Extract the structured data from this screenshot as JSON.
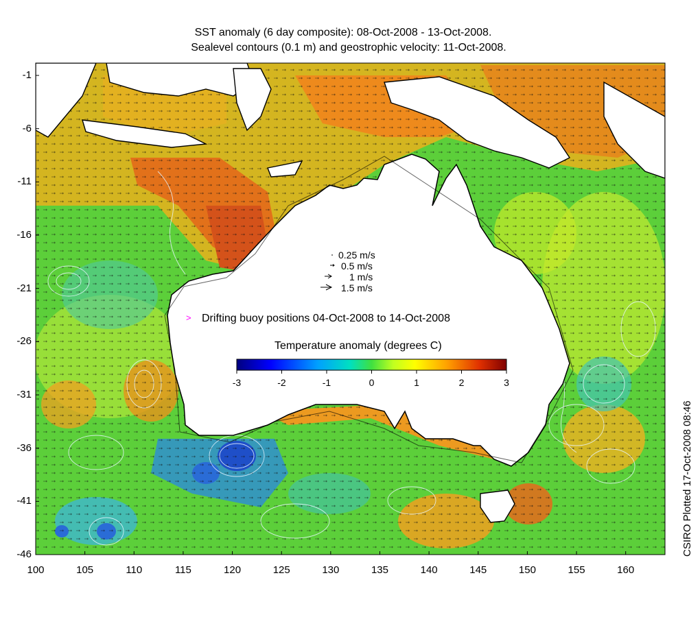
{
  "header": {
    "title_line1": "SST anomaly (6 day composite): 08-Oct-2008 - 13-Oct-2008.",
    "title_line2": "Sealevel contours (0.1 m) and geostrophic velocity: 11-Oct-2008."
  },
  "map": {
    "lon_range": [
      100,
      164
    ],
    "lat_range": [
      -46,
      0
    ],
    "x_ticks": [
      "100",
      "105",
      "110",
      "115",
      "120",
      "125",
      "130",
      "135",
      "140",
      "145",
      "150",
      "155",
      "160"
    ],
    "y_ticks": [
      "-1",
      "-6",
      "-11",
      "-16",
      "-21",
      "-26",
      "-31",
      "-36",
      "-41",
      "-46"
    ]
  },
  "velocity_legend": [
    {
      "label": "0.25 m/s"
    },
    {
      "label": "0.5 m/s"
    },
    {
      "label": "1 m/s"
    },
    {
      "label": "1.5 m/s"
    }
  ],
  "buoy_legend": {
    "marker": ">",
    "label": "Drifting buoy positions 04-Oct-2008 to 14-Oct-2008",
    "color": "#ff00ff"
  },
  "colorbar": {
    "title": "Temperature anomaly (degrees C)",
    "ticks": [
      "-3",
      "-2",
      "-1",
      "0",
      "1",
      "2",
      "3"
    ],
    "colors": [
      "#00007f",
      "#0000ff",
      "#007fff",
      "#00ffff",
      "#7fff7f",
      "#ffff00",
      "#ff7f00",
      "#ff0000",
      "#7f0000"
    ]
  },
  "credit": "CSIRO Plotted 17-Oct-2008 08:46",
  "palette": {
    "ocean_green": "#5ccf3a",
    "warm_orange": "#f08a1c",
    "hot_red": "#d4521a",
    "cool_cyan": "#45c8c8",
    "cold_blue": "#2a6cd6",
    "land": "#ffffff"
  }
}
